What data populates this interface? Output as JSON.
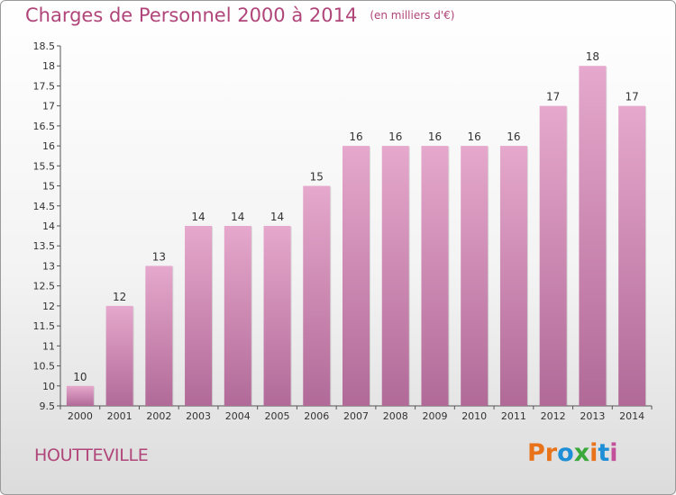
{
  "header": {
    "title": "Charges de Personnel 2000 à 2014",
    "subtitle": "(en milliers d'€)"
  },
  "footer": {
    "place": "HOUTTEVILLE",
    "logo_text": "Proxiti"
  },
  "colors": {
    "title": "#b0457a",
    "bar_top": "#e6a8cc",
    "bar_bottom": "#b16a98",
    "logo": [
      "#e8731a",
      "#e8731a",
      "#1e8fd6",
      "#3aa83a",
      "#e8731a",
      "#1e8fd6",
      "#c2509a"
    ]
  },
  "chart_data": {
    "type": "bar",
    "categories": [
      "2000",
      "2001",
      "2002",
      "2003",
      "2004",
      "2005",
      "2006",
      "2007",
      "2008",
      "2009",
      "2010",
      "2011",
      "2012",
      "2013",
      "2014"
    ],
    "values": [
      10,
      12,
      13,
      14,
      14,
      14,
      15,
      16,
      16,
      16,
      16,
      16,
      17,
      18,
      17
    ],
    "ylim": [
      9.5,
      18.5
    ],
    "yticks": [
      "9.5",
      "10",
      "10.5",
      "11",
      "11.5",
      "12",
      "12.5",
      "13",
      "13.5",
      "14",
      "14.5",
      "15",
      "15.5",
      "16",
      "16.5",
      "17",
      "17.5",
      "18",
      "18.5"
    ],
    "xlabel": "",
    "ylabel": "",
    "grid": false,
    "legend": "none"
  }
}
